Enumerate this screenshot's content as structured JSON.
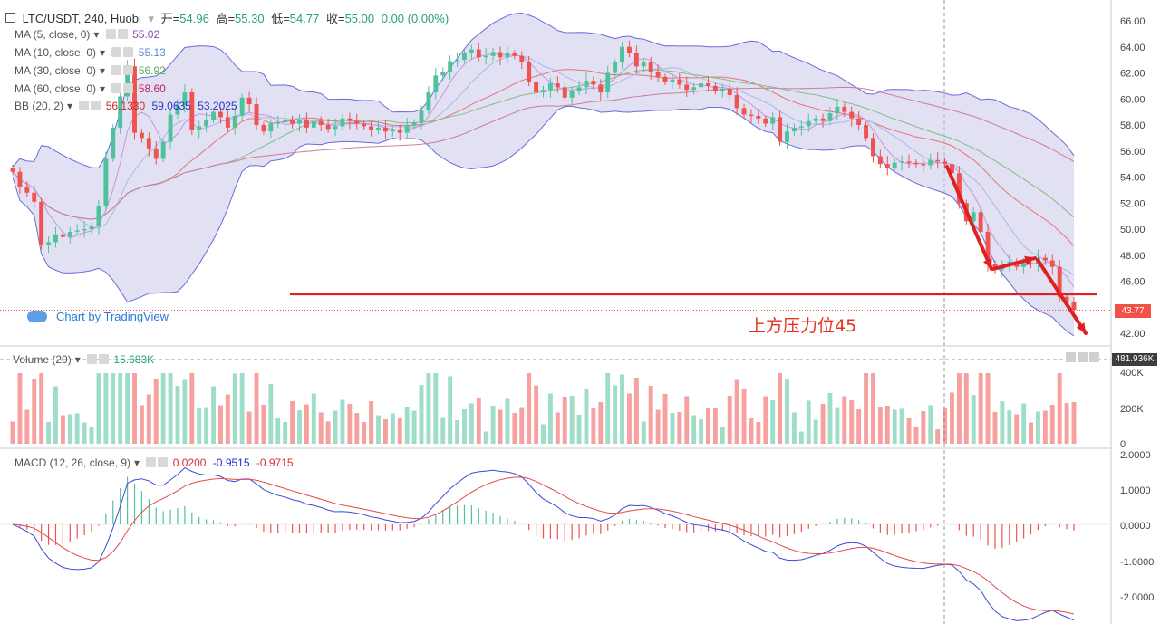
{
  "header": {
    "symbol": "LTC/USDT, 240, Huobi",
    "open_label": "开=",
    "open": "54.96",
    "high_label": "高=",
    "high": "55.30",
    "low_label": "低=",
    "low": "54.77",
    "close_label": "收=",
    "close": "55.00",
    "change": "0.00 (0.00%)"
  },
  "indicators": [
    {
      "label": "MA (5, close, 0)",
      "value": "55.02",
      "color": "#8e44ad"
    },
    {
      "label": "MA (10, close, 0)",
      "value": "55.13",
      "color": "#5e8ad6"
    },
    {
      "label": "MA (30, close, 0)",
      "value": "56.92",
      "color": "#57a85f"
    },
    {
      "label": "MA (60, close, 0)",
      "value": "58.60",
      "color": "#c2185b"
    }
  ],
  "bb": {
    "label": "BB (20, 2)",
    "v1": "56.1330",
    "v2": "59.0635",
    "v3": "53.2025"
  },
  "branding": "Chart by TradingView",
  "annotation": "上方压力位45",
  "last_price_tag": "43.77",
  "volume": {
    "label": "Volume (20)",
    "value": "15.683K",
    "last_tag": "481.936K",
    "ticks": [
      "400K",
      "200K",
      "0"
    ]
  },
  "macd": {
    "label": "MACD (12, 26, close, 9)",
    "v1": "0.0200",
    "v2": "-0.9515",
    "v3": "-0.9715"
  },
  "colors": {
    "up": "#4fc29c",
    "down": "#ef5350",
    "bb_fill": "#c9c9ea",
    "bb_line": "#6b6bdc",
    "annotation": "#e8321f",
    "resistance": "#e02020"
  },
  "chart_data": {
    "type": "candlestick",
    "price_axis": {
      "ticks": [
        "66.00",
        "64.00",
        "62.00",
        "60.00",
        "58.00",
        "56.00",
        "54.00",
        "52.00",
        "50.00",
        "48.00",
        "46.00",
        "42.00"
      ],
      "ylim": [
        41,
        67
      ]
    },
    "resistance_level": 45,
    "closes": [
      54.4,
      53.2,
      52.8,
      52.1,
      48.8,
      49.0,
      49.6,
      49.4,
      49.8,
      49.9,
      50.0,
      50.2,
      51.8,
      55.4,
      57.8,
      60.2,
      62.5,
      57.4,
      57.0,
      56.2,
      55.4,
      56.7,
      58.8,
      59.5,
      60.5,
      57.6,
      57.9,
      58.4,
      59.0,
      58.6,
      57.8,
      58.7,
      60.1,
      59.6,
      58.0,
      57.5,
      58.1,
      58.2,
      58.4,
      58.1,
      58.4,
      57.8,
      58.3,
      58.0,
      57.7,
      57.9,
      58.5,
      58.3,
      58.1,
      57.9,
      57.6,
      57.8,
      57.5,
      57.6,
      57.4,
      58.0,
      58.2,
      59.1,
      60.5,
      61.8,
      62.1,
      62.9,
      63.0,
      63.5,
      63.8,
      63.2,
      63.3,
      63.6,
      63.2,
      63.5,
      63.3,
      62.8,
      61.3,
      60.5,
      60.7,
      61.2,
      60.9,
      60.1,
      60.6,
      60.9,
      61.4,
      61.1,
      60.5,
      62.0,
      62.8,
      64.0,
      63.5,
      62.5,
      62.8,
      62.1,
      61.7,
      61.3,
      61.5,
      61.1,
      60.7,
      60.9,
      61.2,
      61.0,
      60.6,
      60.8,
      60.3,
      59.3,
      58.8,
      58.7,
      58.5,
      58.1,
      58.6,
      56.7,
      57.5,
      57.8,
      57.9,
      58.3,
      58.5,
      58.3,
      58.9,
      59.4,
      59.0,
      58.5,
      58.0,
      57.0,
      55.6,
      55.0,
      54.7,
      55.1,
      55.2,
      55.1,
      55.0,
      54.9,
      55.3,
      55.2,
      55.0,
      54.3,
      52.0,
      50.6,
      51.3,
      49.8,
      47.3,
      46.9,
      47.2,
      47.5,
      47.1,
      47.4,
      47.3,
      47.8,
      47.6,
      47.1,
      44.8,
      44.4,
      43.8
    ]
  }
}
